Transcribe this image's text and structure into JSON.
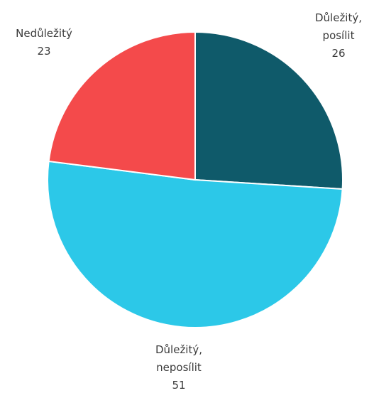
{
  "chart_data": {
    "type": "pie",
    "slices": [
      {
        "label_lines": [
          "Důležitý,",
          "posílit"
        ],
        "value": 26,
        "color": "#0f5a6a"
      },
      {
        "label_lines": [
          "Důležitý,",
          "neposílit"
        ],
        "value": 51,
        "color": "#2cc8e8"
      },
      {
        "label_lines": [
          "Nedůležitý"
        ],
        "value": 23,
        "color": "#f44a4b"
      }
    ],
    "start_angle": "12 o'clock",
    "direction": "clockwise",
    "legend": "none"
  }
}
